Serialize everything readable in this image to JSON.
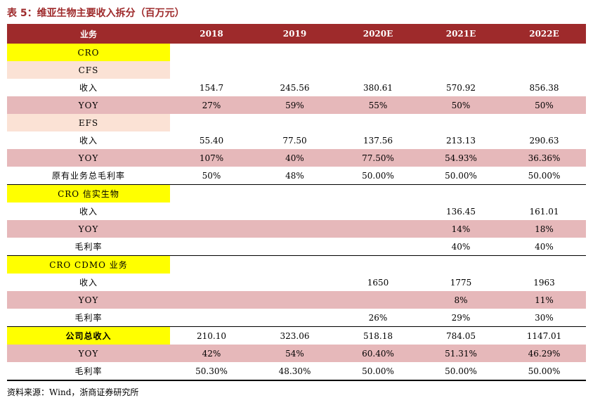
{
  "title": "表 5：维亚生物主要收入拆分（百万元）",
  "columns": [
    "业务",
    "2018",
    "2019",
    "2020E",
    "2021E",
    "2022E"
  ],
  "rows": [
    {
      "label": "CRO",
      "style": "yellow",
      "values": [
        "",
        "",
        "",
        "",
        ""
      ]
    },
    {
      "label": "CFS",
      "style": "peach",
      "values": [
        "",
        "",
        "",
        "",
        ""
      ]
    },
    {
      "label": "收入",
      "style": "plain",
      "values": [
        "154.7",
        "245.56",
        "380.61",
        "570.92",
        "856.38"
      ]
    },
    {
      "label": "YOY",
      "style": "pink",
      "values": [
        "27%",
        "59%",
        "55%",
        "50%",
        "50%"
      ]
    },
    {
      "label": "EFS",
      "style": "peach",
      "values": [
        "",
        "",
        "",
        "",
        ""
      ]
    },
    {
      "label": "收入",
      "style": "plain",
      "values": [
        "55.40",
        "77.50",
        "137.56",
        "213.13",
        "290.63"
      ]
    },
    {
      "label": "YOY",
      "style": "pink",
      "values": [
        "107%",
        "40%",
        "77.50%",
        "54.93%",
        "36.36%"
      ]
    },
    {
      "label": "原有业务总毛利率",
      "style": "plain",
      "values": [
        "50%",
        "48%",
        "50.00%",
        "50.00%",
        "50.00%"
      ]
    },
    {
      "label": "CRO 信实生物",
      "style": "yellow",
      "section": true,
      "values": [
        "",
        "",
        "",
        "",
        ""
      ]
    },
    {
      "label": "收入",
      "style": "plain",
      "values": [
        "",
        "",
        "",
        "136.45",
        "161.01"
      ]
    },
    {
      "label": "YOY",
      "style": "pink",
      "values": [
        "",
        "",
        "",
        "14%",
        "18%"
      ]
    },
    {
      "label": "毛利率",
      "style": "plain",
      "values": [
        "",
        "",
        "",
        "40%",
        "40%"
      ]
    },
    {
      "label": "CRO CDMO 业务",
      "style": "yellow",
      "section": true,
      "values": [
        "",
        "",
        "",
        "",
        ""
      ]
    },
    {
      "label": "收入",
      "style": "plain",
      "values": [
        "",
        "",
        "1650",
        "1775",
        "1963"
      ]
    },
    {
      "label": "YOY",
      "style": "pink",
      "values": [
        "",
        "",
        "",
        "8%",
        "11%"
      ]
    },
    {
      "label": "毛利率",
      "style": "plain",
      "values": [
        "",
        "",
        "26%",
        "29%",
        "30%"
      ]
    },
    {
      "label": "公司总收入",
      "style": "yellow",
      "section": true,
      "bold": true,
      "values": [
        "210.10",
        "323.06",
        "518.18",
        "784.05",
        "1147.01"
      ]
    },
    {
      "label": "YOY",
      "style": "pink",
      "labelYellow": true,
      "values": [
        "42%",
        "54%",
        "60.40%",
        "51.31%",
        "46.29%"
      ]
    },
    {
      "label": "毛利率",
      "style": "plain",
      "values": [
        "50.30%",
        "48.30%",
        "50.00%",
        "50.00%",
        "50.00%"
      ]
    }
  ],
  "source": "资料来源：Wind，浙商证券研究所",
  "colors": {
    "header": "#9e2a2b",
    "pink": "#e6b8ba",
    "yellow": "#ffff00",
    "peach": "#fbe2d5",
    "title": "#9e2a2b"
  }
}
